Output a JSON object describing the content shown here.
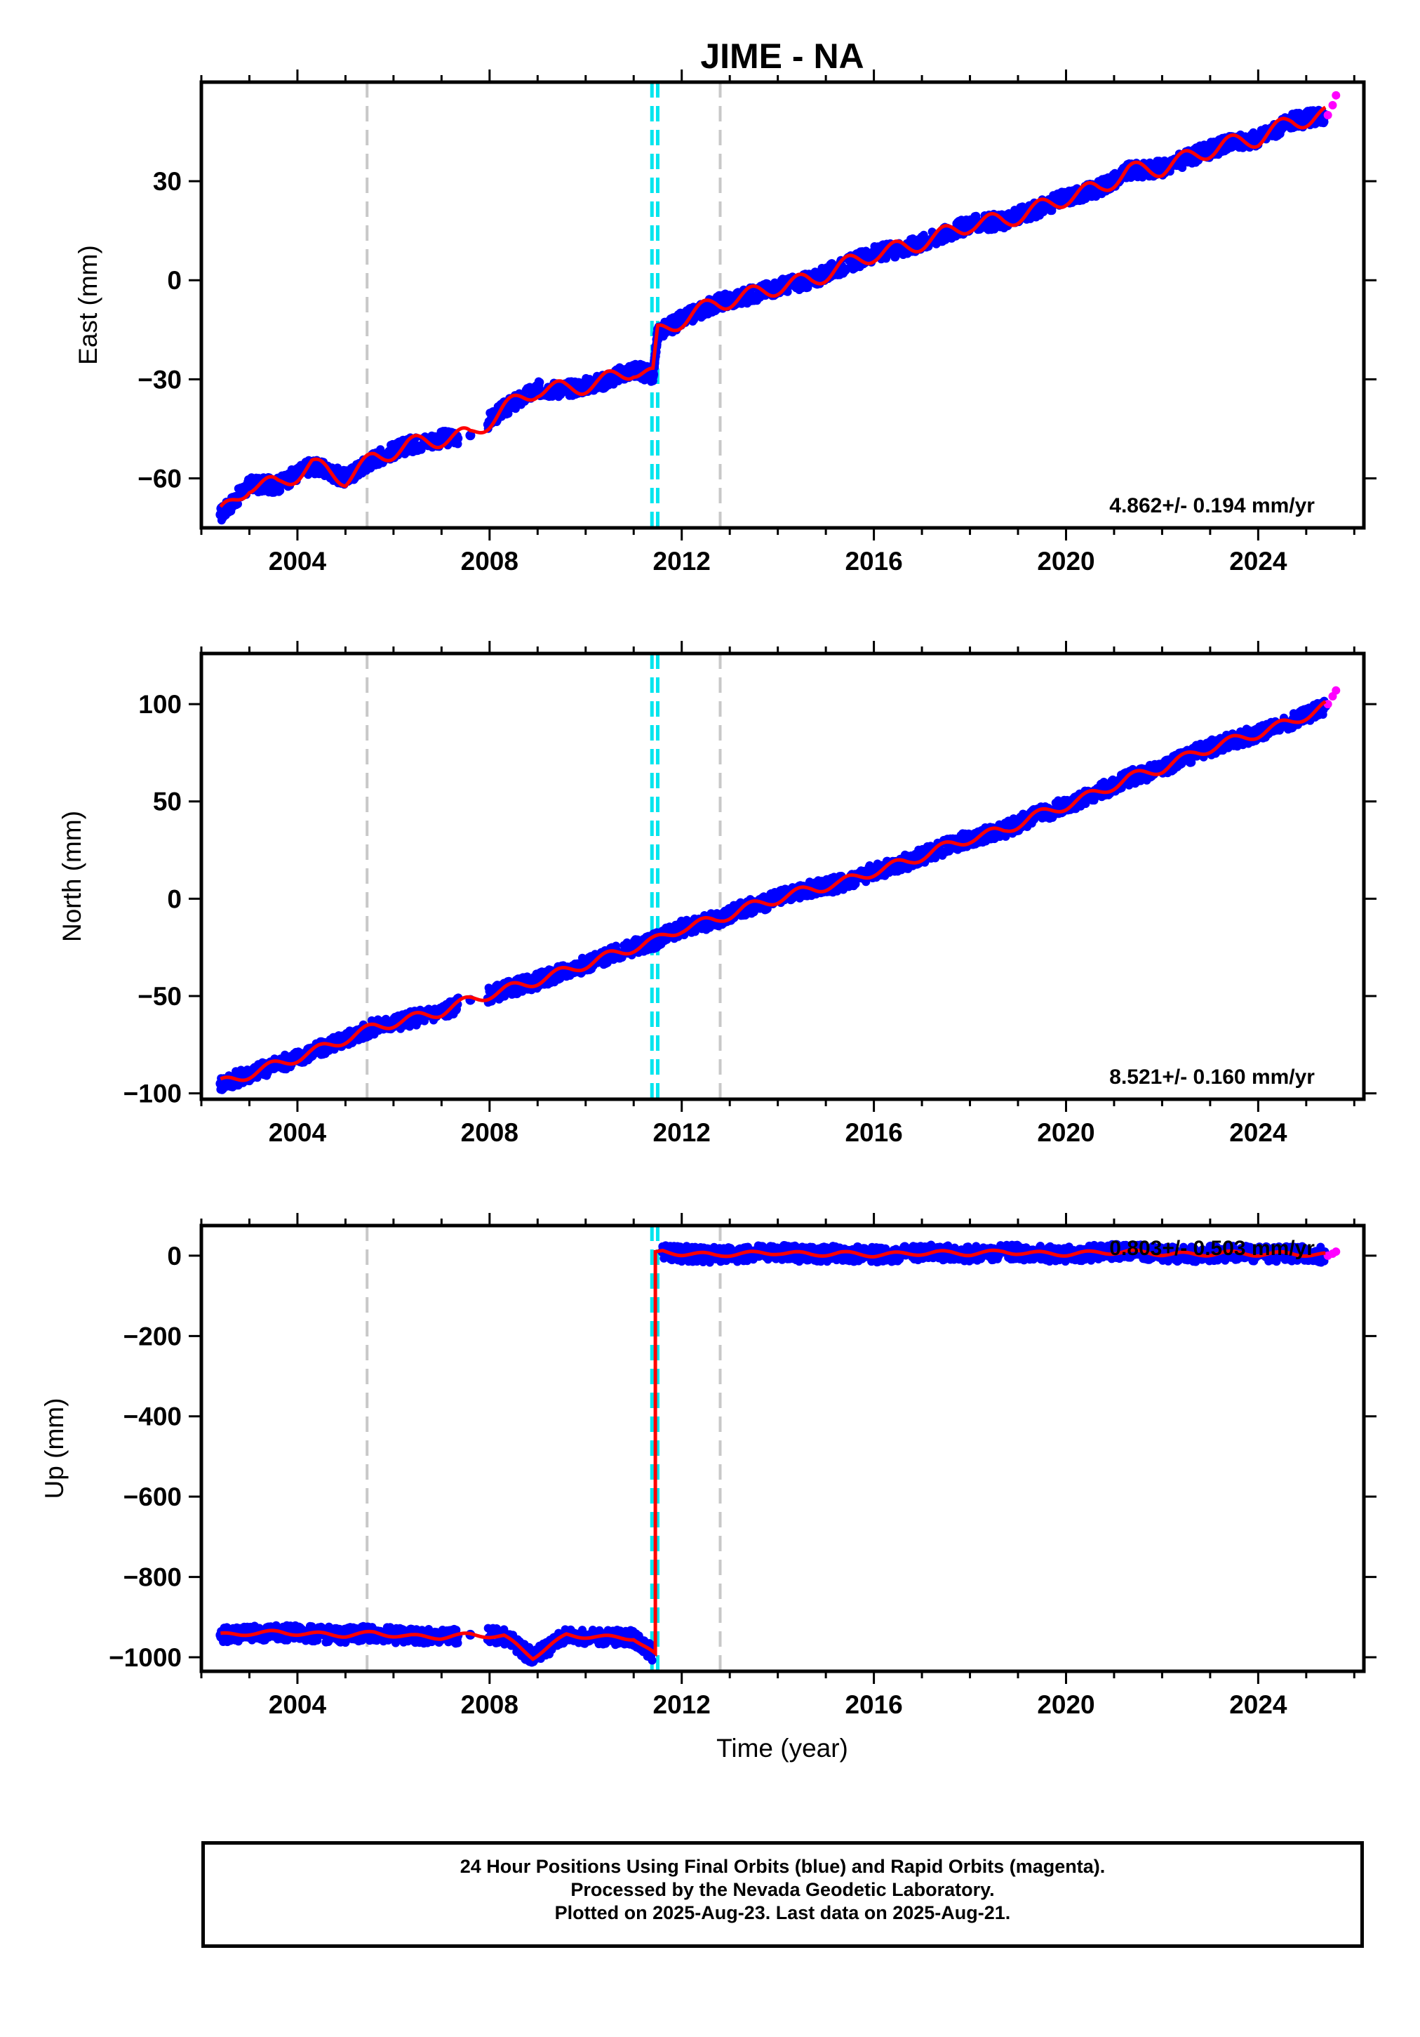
{
  "title": "JIME - NA",
  "xlabel": "Time (year)",
  "footer": {
    "line1": "24 Hour Positions Using Final Orbits (blue) and Rapid Orbits (magenta).",
    "line2": "Processed by the Nevada Geodetic Laboratory.",
    "line3": "Plotted on 2025-Aug-23. Last data on 2025-Aug-21."
  },
  "colors": {
    "final": "#0000ff",
    "rapid": "#ff00ff",
    "model": "#ff0000",
    "equipment_change": "#c8c8c8",
    "earthquake": "#00e5ee"
  },
  "chart_data": [
    {
      "type": "scatter",
      "component": "east",
      "ylabel": "East (mm)",
      "xlim": [
        2002.0,
        2026.2
      ],
      "ylim": [
        -75,
        60
      ],
      "xticks": [
        2004,
        2008,
        2012,
        2016,
        2020,
        2024
      ],
      "yticks": [
        -60,
        -30,
        0,
        30
      ],
      "rate_label": "4.862+/- 0.194 mm/yr",
      "equipment_changes": [
        2005.45,
        2012.8
      ],
      "earthquakes": [
        2011.38,
        2011.5
      ],
      "series": [
        {
          "name": "Final Orbits (blue)",
          "x": [
            2002.4,
            2003.0,
            2003.6,
            2004.3,
            2005.0,
            2005.6,
            2006.3,
            2007.0,
            2007.6,
            2008.3,
            2009.0,
            2009.6,
            2010.3,
            2011.0,
            2011.4,
            2011.5,
            2012.0,
            2012.7,
            2013.3,
            2014.0,
            2014.7,
            2015.3,
            2016.0,
            2016.7,
            2017.3,
            2018.0,
            2018.7,
            2019.3,
            2020.0,
            2020.7,
            2021.3,
            2022.0,
            2022.7,
            2023.3,
            2024.0,
            2024.7,
            2025.4
          ],
          "y": [
            -71,
            -62,
            -62,
            -56,
            -60,
            -54,
            -50,
            -48,
            -47,
            -39,
            -33,
            -33,
            -31,
            -27,
            -29,
            -16,
            -12,
            -7,
            -5,
            -2,
            0,
            4,
            8,
            10,
            13,
            17,
            18,
            21,
            25,
            28,
            33,
            34,
            38,
            41,
            43,
            48,
            50
          ]
        },
        {
          "name": "Rapid Orbits (magenta)",
          "x": [
            2025.45,
            2025.55,
            2025.62
          ],
          "y": [
            50,
            53,
            56
          ]
        }
      ],
      "model": {
        "rate": 4.862,
        "offset_at": 2011.45,
        "offset": 13,
        "annual_amplitude": 2.5
      }
    },
    {
      "type": "scatter",
      "component": "north",
      "ylabel": "North (mm)",
      "xlim": [
        2002.0,
        2026.2
      ],
      "ylim": [
        -103,
        126
      ],
      "xticks": [
        2004,
        2008,
        2012,
        2016,
        2020,
        2024
      ],
      "yticks": [
        -100,
        -50,
        0,
        50,
        100
      ],
      "rate_label": "8.521+/- 0.160 mm/yr",
      "equipment_changes": [
        2005.45,
        2012.8
      ],
      "earthquakes": [
        2011.38,
        2011.5
      ],
      "series": [
        {
          "name": "Final Orbits (blue)",
          "x": [
            2002.4,
            2003.0,
            2003.6,
            2004.3,
            2005.0,
            2005.6,
            2006.3,
            2007.0,
            2007.6,
            2008.3,
            2009.0,
            2009.6,
            2010.3,
            2011.0,
            2011.4,
            2011.5,
            2012.0,
            2012.7,
            2013.3,
            2014.0,
            2014.7,
            2015.3,
            2016.0,
            2016.7,
            2017.3,
            2018.0,
            2018.7,
            2019.3,
            2020.0,
            2020.7,
            2021.3,
            2022.0,
            2022.7,
            2023.3,
            2024.0,
            2024.7,
            2025.4
          ],
          "y": [
            -95,
            -90,
            -85,
            -79,
            -72,
            -66,
            -62,
            -58,
            -52,
            -47,
            -42,
            -37,
            -31,
            -25,
            -22,
            -21,
            -15,
            -11,
            -5,
            0,
            5,
            8,
            14,
            19,
            25,
            31,
            35,
            42,
            48,
            55,
            62,
            67,
            75,
            80,
            85,
            91,
            99
          ]
        },
        {
          "name": "Rapid Orbits (magenta)",
          "x": [
            2025.45,
            2025.55,
            2025.62
          ],
          "y": [
            100,
            104,
            107
          ]
        }
      ],
      "model": {
        "rate": 8.521,
        "offset_at": 2011.45,
        "offset": 0,
        "annual_amplitude": 2.5
      }
    },
    {
      "type": "scatter",
      "component": "up",
      "ylabel": "Up (mm)",
      "xlim": [
        2002.0,
        2026.2
      ],
      "ylim": [
        -1035,
        75
      ],
      "xticks": [
        2004,
        2008,
        2012,
        2016,
        2020,
        2024
      ],
      "yticks": [
        -1000,
        -800,
        -600,
        -400,
        -200,
        0
      ],
      "rate_label": "0.803+/- 0.503 mm/yr",
      "equipment_changes": [
        2005.45,
        2012.8
      ],
      "earthquakes": [
        2011.38,
        2011.5
      ],
      "series": [
        {
          "name": "Final Orbits (blue)",
          "x": [
            2002.4,
            2003.0,
            2003.6,
            2004.3,
            2005.0,
            2005.6,
            2006.3,
            2007.0,
            2007.6,
            2008.3,
            2008.9,
            2009.6,
            2010.3,
            2011.0,
            2011.4,
            2011.6,
            2012.0,
            2012.7,
            2013.3,
            2014.0,
            2014.7,
            2015.3,
            2016.0,
            2016.7,
            2017.3,
            2018.0,
            2018.7,
            2019.3,
            2020.0,
            2020.7,
            2021.3,
            2022.0,
            2022.7,
            2023.3,
            2024.0,
            2024.7,
            2025.4
          ],
          "y": [
            -945,
            -940,
            -938,
            -942,
            -945,
            -940,
            -948,
            -950,
            -944,
            -948,
            -1000,
            -945,
            -950,
            -952,
            -990,
            10,
            5,
            2,
            5,
            8,
            3,
            6,
            2,
            5,
            8,
            5,
            10,
            6,
            4,
            8,
            10,
            5,
            3,
            7,
            4,
            5,
            2
          ]
        },
        {
          "name": "Rapid Orbits (magenta)",
          "x": [
            2025.45,
            2025.55,
            2025.62
          ],
          "y": [
            0,
            5,
            10
          ]
        }
      ],
      "model": {
        "rate": 0.803,
        "offset_at": 2011.45,
        "offset": 955,
        "annual_amplitude": 5
      }
    }
  ]
}
